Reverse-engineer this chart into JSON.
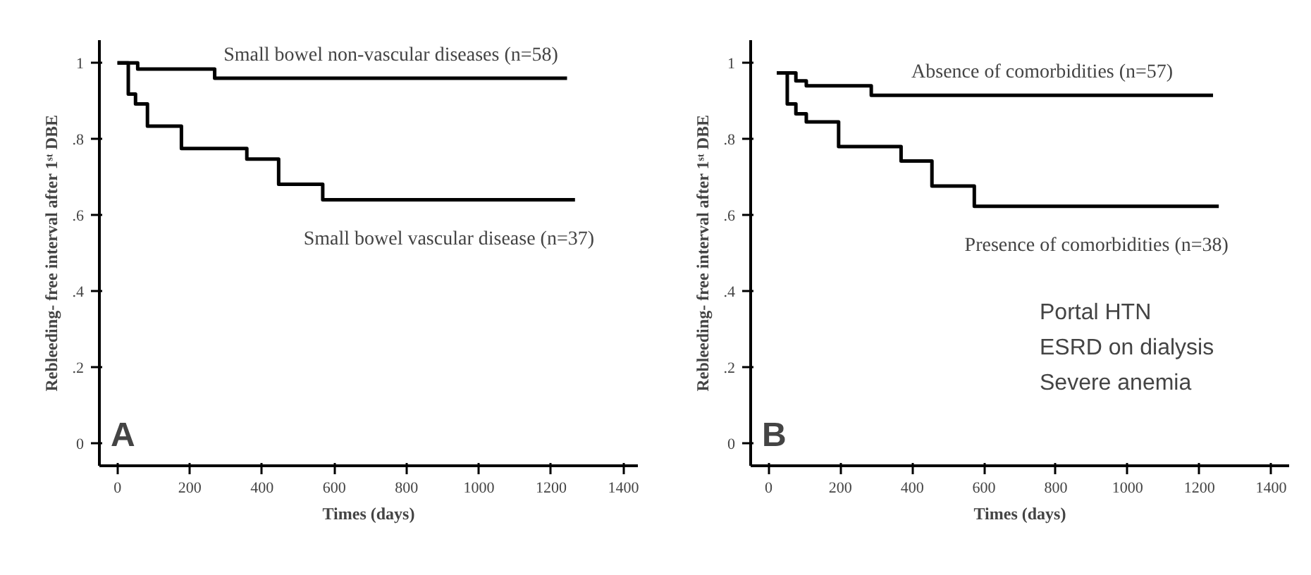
{
  "chart_data": [
    {
      "type": "step",
      "xlabel": "Times (days)",
      "ylabel": "Rebleeding- free interval after 1ˢᵗ DBE",
      "xlim": [
        -50,
        1440
      ],
      "ylim": [
        -0.06,
        1.06
      ],
      "xticks": [
        0,
        200,
        400,
        600,
        800,
        1000,
        1200,
        1400
      ],
      "yticks": [
        0,
        {
          "value": 0.2,
          "label": ".2"
        },
        {
          "value": 0.4,
          "label": ".4"
        },
        {
          "value": 0.6,
          "label": ".6"
        },
        {
          "value": 0.8,
          "label": ".8"
        },
        1
      ],
      "series": [
        {
          "name": "Small bowel non-vascular diseases (n=58)",
          "color": "#000000",
          "x": [
            0,
            56,
            269,
            1244
          ],
          "values": [
            1,
            0.984,
            0.96,
            0.96
          ]
        },
        {
          "name": "Small bowel vascular disease (n=37)",
          "color": "#000000",
          "x": [
            0,
            30,
            50,
            83,
            177,
            358,
            446,
            568,
            1266
          ],
          "values": [
            1,
            0.918,
            0.892,
            0.834,
            0.775,
            0.747,
            0.681,
            0.64,
            0.64
          ]
        }
      ],
      "annotations": [
        "A"
      ],
      "grid": false,
      "legend": false
    },
    {
      "type": "step",
      "xlabel": "Times (days)",
      "ylabel": "Rebleeding- free interval after 1ˢᵗ DBE",
      "xlim": [
        -50,
        1450
      ],
      "ylim": [
        -0.06,
        1.06
      ],
      "xticks": [
        0,
        200,
        400,
        600,
        800,
        1000,
        1200,
        1400
      ],
      "yticks": [
        0,
        {
          "value": 0.2,
          "label": ".2"
        },
        {
          "value": 0.4,
          "label": ".4"
        },
        {
          "value": 0.6,
          "label": ".6"
        },
        {
          "value": 0.8,
          "label": ".8"
        },
        1
      ],
      "series": [
        {
          "name": "Absence of comorbidities (n=57)",
          "color": "#000000",
          "x": [
            23,
            76,
            105,
            286,
            1238
          ],
          "values": [
            0.974,
            0.953,
            0.94,
            0.915,
            0.915
          ]
        },
        {
          "name": "Presence of comorbidities (n=38)",
          "color": "#000000",
          "x": [
            23,
            52,
            76,
            105,
            195,
            369,
            455,
            573,
            1254
          ],
          "values": [
            0.974,
            0.892,
            0.866,
            0.845,
            0.78,
            0.742,
            0.676,
            0.623,
            0.623
          ]
        }
      ],
      "annotations": [
        "B",
        "Portal HTN",
        "ESRD on dialysis",
        "Severe anemia"
      ],
      "grid": false,
      "legend": false
    }
  ]
}
